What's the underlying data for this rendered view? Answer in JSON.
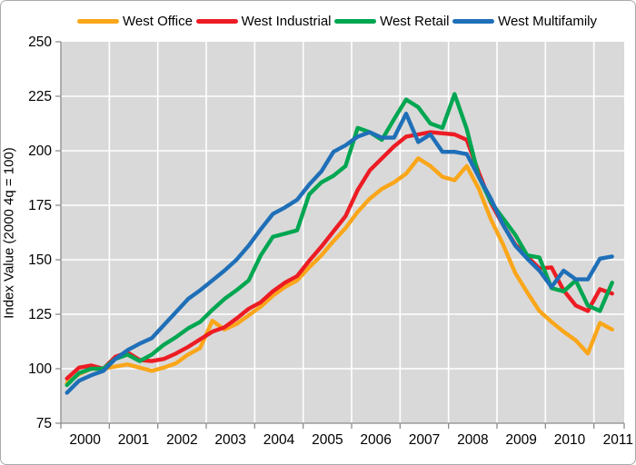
{
  "chart_data": {
    "type": "line",
    "title": "",
    "ylabel": "Index Value (2000 4q = 100)",
    "ylim": [
      75,
      250
    ],
    "y_ticks": [
      75,
      100,
      125,
      150,
      175,
      200,
      225,
      250
    ],
    "x_year_labels": [
      "2000",
      "2001",
      "2002",
      "2003",
      "2004",
      "2005",
      "2006",
      "2007",
      "2008",
      "2009",
      "2010",
      "2011"
    ],
    "grid": "on",
    "legend_position": "top",
    "plot_bg_color": "#d9d9d9",
    "gridline_color": "#ffffff",
    "axis_color": "#8c8c8c",
    "label_color": "#000000",
    "quarters": [
      "2000Q1",
      "2000Q2",
      "2000Q3",
      "2000Q4",
      "2001Q1",
      "2001Q2",
      "2001Q3",
      "2001Q4",
      "2002Q1",
      "2002Q2",
      "2002Q3",
      "2002Q4",
      "2003Q1",
      "2003Q2",
      "2003Q3",
      "2003Q4",
      "2004Q1",
      "2004Q2",
      "2004Q3",
      "2004Q4",
      "2005Q1",
      "2005Q2",
      "2005Q3",
      "2005Q4",
      "2006Q1",
      "2006Q2",
      "2006Q3",
      "2006Q4",
      "2007Q1",
      "2007Q2",
      "2007Q3",
      "2007Q4",
      "2008Q1",
      "2008Q2",
      "2008Q3",
      "2008Q4",
      "2009Q1",
      "2009Q2",
      "2009Q3",
      "2009Q4",
      "2010Q1",
      "2010Q2",
      "2010Q3",
      "2010Q4",
      "2011Q1",
      "2011Q2"
    ],
    "series": [
      {
        "name": "West Office",
        "color": "#faa61a",
        "values": [
          93.5,
          97.5,
          100,
          100,
          101,
          102,
          100.5,
          99,
          100.5,
          102.5,
          106.5,
          109.5,
          122,
          118,
          120.5,
          124.5,
          128.5,
          133.5,
          137.5,
          140.5,
          146.5,
          152,
          158.5,
          164.5,
          172,
          178,
          182.5,
          185.5,
          189.5,
          196.5,
          193,
          188,
          186.5,
          193,
          182.5,
          168.5,
          157,
          144,
          135,
          126.5,
          121.5,
          117,
          113,
          107,
          121,
          118
        ]
      },
      {
        "name": "West Industrial",
        "color": "#ed1c24",
        "values": [
          95.5,
          100.5,
          101.5,
          100,
          105.5,
          107.5,
          104,
          103.5,
          104.5,
          107,
          110,
          113.5,
          117,
          119,
          123,
          127.5,
          130.5,
          135.5,
          139.5,
          142.5,
          149.5,
          156,
          163,
          170,
          182,
          191,
          196.5,
          202,
          206.5,
          207.5,
          208.5,
          208,
          207.5,
          205,
          190,
          176,
          166,
          157,
          151.5,
          146,
          146.5,
          136,
          129,
          126.5,
          136.5,
          134.5
        ]
      },
      {
        "name": "West Retail",
        "color": "#00a651",
        "values": [
          92.5,
          98,
          100,
          100,
          104.5,
          106.5,
          103.5,
          106.5,
          111,
          114.5,
          118.5,
          121.5,
          127,
          132,
          136,
          140.5,
          152,
          160.5,
          162,
          163.5,
          180,
          185.5,
          188.5,
          193,
          210.5,
          208.5,
          205,
          214.5,
          223.5,
          220,
          212.5,
          210.5,
          226,
          210,
          188,
          176.5,
          169,
          161.5,
          152,
          151,
          137,
          135.5,
          140.5,
          129,
          126.5,
          139.5
        ]
      },
      {
        "name": "West Multifamily",
        "color": "#1f6fb8",
        "values": [
          89,
          94.5,
          97,
          99,
          104.5,
          108.5,
          111.5,
          114,
          120,
          126,
          132,
          136,
          140.5,
          145,
          150,
          156.5,
          164,
          171,
          174,
          177.5,
          184.5,
          190.5,
          199.5,
          202.5,
          206.5,
          208.5,
          206,
          206,
          217,
          204,
          207.5,
          199.5,
          199.5,
          198.5,
          188,
          178,
          166,
          156.5,
          150.5,
          145,
          137.5,
          145,
          141,
          141,
          150.5,
          151.5
        ]
      }
    ]
  }
}
